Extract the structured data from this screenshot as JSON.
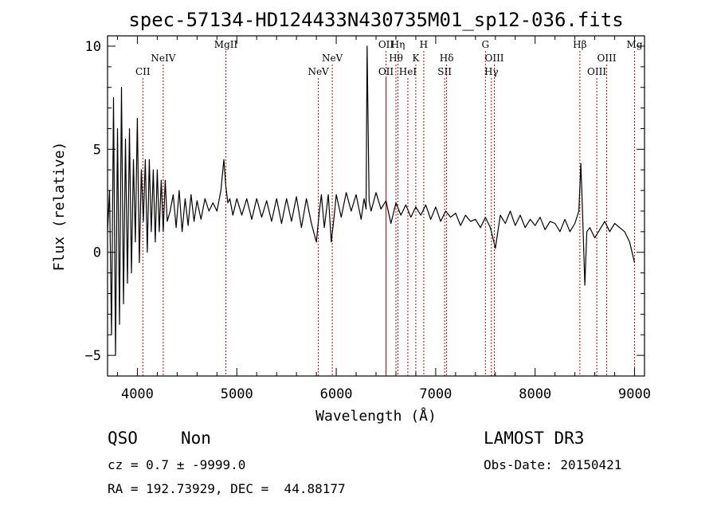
{
  "chart_data": {
    "type": "line",
    "title": "spec-57134-HD124433N430735M01_sp12-036.fits",
    "xlabel": "Wavelength (Å)",
    "ylabel": "Flux (relative)",
    "xlim": [
      3700,
      9100
    ],
    "ylim": [
      -6,
      10.5
    ],
    "x_ticks": [
      4000,
      5000,
      6000,
      7000,
      8000,
      9000
    ],
    "y_ticks": [
      -5,
      0,
      5,
      10
    ],
    "grid": false,
    "line_color": "#000000",
    "marker_color": "#cc0000",
    "series": [
      {
        "x": [
          3700,
          3720,
          3740,
          3760,
          3780,
          3800,
          3820,
          3840,
          3860,
          3880,
          3900,
          3920,
          3940,
          3960,
          3980,
          4000,
          4020,
          4040,
          4060,
          4080,
          4100,
          4120,
          4140,
          4160,
          4180,
          4200,
          4220,
          4240,
          4260,
          4280,
          4300,
          4330,
          4360,
          4390,
          4420,
          4450,
          4480,
          4510,
          4540,
          4570,
          4600,
          4640,
          4680,
          4720,
          4760,
          4800,
          4840,
          4870,
          4890,
          4910,
          4930,
          4960,
          5000,
          5050,
          5100,
          5150,
          5200,
          5250,
          5300,
          5350,
          5400,
          5450,
          5500,
          5550,
          5600,
          5650,
          5700,
          5750,
          5800,
          5830,
          5850,
          5880,
          5920,
          5950,
          5980,
          6000,
          6050,
          6100,
          6150,
          6200,
          6250,
          6280,
          6300,
          6310,
          6330,
          6350,
          6400,
          6450,
          6500,
          6550,
          6600,
          6650,
          6700,
          6750,
          6800,
          6850,
          6900,
          6950,
          7000,
          7050,
          7100,
          7150,
          7200,
          7250,
          7300,
          7350,
          7400,
          7450,
          7500,
          7550,
          7600,
          7650,
          7700,
          7750,
          7800,
          7850,
          7900,
          7950,
          8000,
          8050,
          8100,
          8150,
          8200,
          8250,
          8300,
          8350,
          8400,
          8440,
          8460,
          8480,
          8500,
          8520,
          8550,
          8600,
          8650,
          8700,
          8750,
          8800,
          8850,
          8900,
          8950,
          9000
        ],
        "y": [
          1.0,
          3.0,
          -4.0,
          7.5,
          -5.0,
          6.0,
          -3.5,
          8.0,
          -2.5,
          5.5,
          -1.5,
          6.0,
          -1.0,
          4.5,
          0.5,
          6.5,
          -0.5,
          4.0,
          1.5,
          4.5,
          0.0,
          4.5,
          1.0,
          4.0,
          0.5,
          4.0,
          1.0,
          3.5,
          1.0,
          3.5,
          1.5,
          2.0,
          2.8,
          1.2,
          3.0,
          1.0,
          2.6,
          1.3,
          2.8,
          1.5,
          2.5,
          1.6,
          2.6,
          2.0,
          2.4,
          2.0,
          3.0,
          4.5,
          3.2,
          2.4,
          2.6,
          1.8,
          2.6,
          1.8,
          2.6,
          1.6,
          2.6,
          1.7,
          2.5,
          1.5,
          2.6,
          1.4,
          2.6,
          1.5,
          2.7,
          1.2,
          2.6,
          1.4,
          0.5,
          2.0,
          2.8,
          1.2,
          2.8,
          0.5,
          1.8,
          2.8,
          1.7,
          2.9,
          2.0,
          2.8,
          1.6,
          2.6,
          2.1,
          10.0,
          2.5,
          2.0,
          2.9,
          2.1,
          2.5,
          1.4,
          2.4,
          1.8,
          2.3,
          1.7,
          2.2,
          1.8,
          2.3,
          1.6,
          2.2,
          1.5,
          2.0,
          1.7,
          1.9,
          1.3,
          1.8,
          1.5,
          1.6,
          1.2,
          1.7,
          1.2,
          0.2,
          1.8,
          1.4,
          2.0,
          1.3,
          1.8,
          1.2,
          1.6,
          1.3,
          1.7,
          1.1,
          1.5,
          1.4,
          1.0,
          1.6,
          1.0,
          1.4,
          2.0,
          4.3,
          1.5,
          -1.6,
          1.0,
          1.2,
          0.7,
          1.1,
          1.5,
          1.0,
          1.4,
          1.2,
          1.0,
          0.5,
          -0.5
        ]
      }
    ],
    "lines": [
      {
        "label": "CII",
        "x": 4055,
        "row": 2
      },
      {
        "label": "NeIV",
        "x": 4260,
        "row": 1
      },
      {
        "label": "MgII",
        "x": 4890,
        "row": 0
      },
      {
        "label": "NeV",
        "x": 5820,
        "row": 2
      },
      {
        "label": "NeV",
        "x": 5960,
        "row": 1
      },
      {
        "label": "OII",
        "x": 6500,
        "row": 0
      },
      {
        "label": "OII",
        "x": 6500,
        "row": 2
      },
      {
        "label": "Hη",
        "x": 6620,
        "row": 0
      },
      {
        "label": "Hθ",
        "x": 6600,
        "row": 1
      },
      {
        "label": "HeI",
        "x": 6720,
        "row": 2
      },
      {
        "label": "K",
        "x": 6800,
        "row": 1
      },
      {
        "label": "H",
        "x": 6880,
        "row": 0
      },
      {
        "label": "Hδ",
        "x": 7110,
        "row": 1
      },
      {
        "label": "SII",
        "x": 7090,
        "row": 2
      },
      {
        "label": "G",
        "x": 7500,
        "row": 0
      },
      {
        "label": "OIII",
        "x": 7590,
        "row": 1
      },
      {
        "label": "Hγ",
        "x": 7560,
        "row": 2
      },
      {
        "label": "Hβ",
        "x": 8450,
        "row": 0
      },
      {
        "label": "OIII",
        "x": 8720,
        "row": 1
      },
      {
        "label": "OIII",
        "x": 8620,
        "row": 2
      },
      {
        "label": "Mg",
        "x": 9000,
        "row": 0
      }
    ]
  },
  "info": {
    "class": "QSO",
    "subclass": "Non",
    "survey": "LAMOST DR3",
    "cz": "cz = 0.7 ± -9999.0",
    "obs_date": "Obs-Date: 20150421",
    "coords": "RA = 192.73929, DEC =  44.88177"
  }
}
